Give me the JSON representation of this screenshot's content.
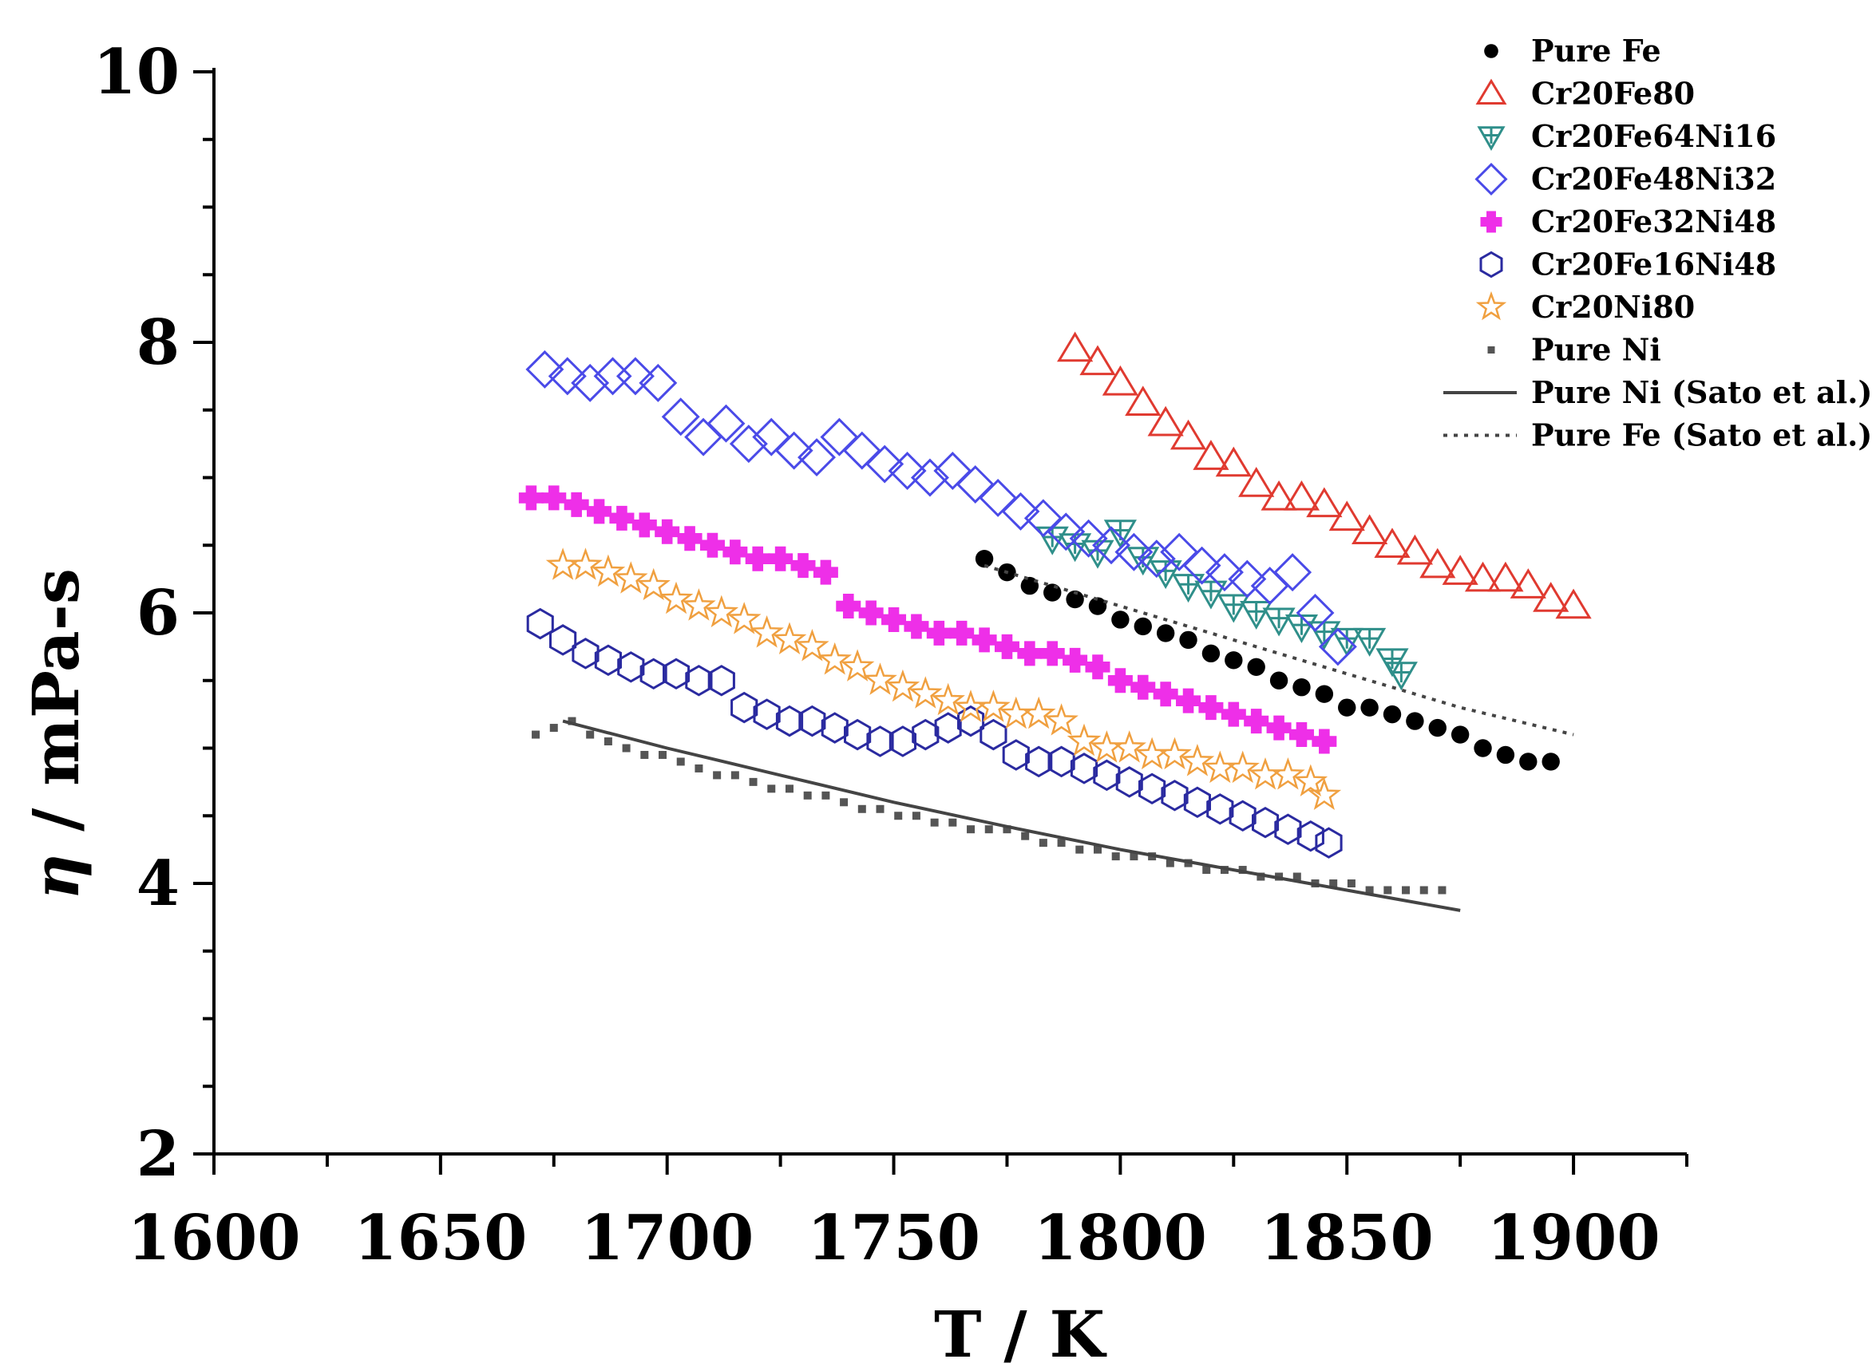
{
  "chart_data": {
    "type": "scatter",
    "title": "",
    "xlabel": "T / K",
    "ylabel_symbol": "η",
    "ylabel_unit": " / mPa-s",
    "xlim": [
      1600,
      1925
    ],
    "ylim": [
      2,
      10
    ],
    "x_major_ticks": [
      1600,
      1650,
      1700,
      1750,
      1800,
      1850,
      1900
    ],
    "x_tick_labels": [
      "1600",
      "1650",
      "1700",
      "1750",
      "1800",
      "1850",
      "1900"
    ],
    "x_minor_step": 25,
    "y_major_ticks": [
      2,
      4,
      6,
      8,
      10
    ],
    "y_tick_labels": [
      "2",
      "4",
      "6",
      "8",
      "10"
    ],
    "y_minor_step": 0.5,
    "grid": false,
    "legend_position": "top-right",
    "series": [
      {
        "name": "Pure Fe",
        "marker": "filled-circle",
        "color": "#000000",
        "points": [
          [
            1770,
            6.4
          ],
          [
            1775,
            6.3
          ],
          [
            1780,
            6.2
          ],
          [
            1785,
            6.15
          ],
          [
            1790,
            6.1
          ],
          [
            1795,
            6.05
          ],
          [
            1800,
            5.95
          ],
          [
            1805,
            5.9
          ],
          [
            1810,
            5.85
          ],
          [
            1815,
            5.8
          ],
          [
            1820,
            5.7
          ],
          [
            1825,
            5.65
          ],
          [
            1830,
            5.6
          ],
          [
            1835,
            5.5
          ],
          [
            1840,
            5.45
          ],
          [
            1845,
            5.4
          ],
          [
            1850,
            5.3
          ],
          [
            1855,
            5.3
          ],
          [
            1860,
            5.25
          ],
          [
            1865,
            5.2
          ],
          [
            1870,
            5.15
          ],
          [
            1875,
            5.1
          ],
          [
            1880,
            5.0
          ],
          [
            1885,
            4.95
          ],
          [
            1890,
            4.9
          ],
          [
            1895,
            4.9
          ]
        ]
      },
      {
        "name": "Cr20Fe80",
        "marker": "open-triangle",
        "color": "#e03a30",
        "points": [
          [
            1790,
            7.95
          ],
          [
            1795,
            7.85
          ],
          [
            1800,
            7.7
          ],
          [
            1805,
            7.55
          ],
          [
            1810,
            7.4
          ],
          [
            1815,
            7.3
          ],
          [
            1820,
            7.15
          ],
          [
            1825,
            7.1
          ],
          [
            1830,
            6.95
          ],
          [
            1835,
            6.85
          ],
          [
            1840,
            6.85
          ],
          [
            1845,
            6.8
          ],
          [
            1850,
            6.7
          ],
          [
            1855,
            6.6
          ],
          [
            1860,
            6.5
          ],
          [
            1865,
            6.45
          ],
          [
            1870,
            6.35
          ],
          [
            1875,
            6.3
          ],
          [
            1880,
            6.25
          ],
          [
            1885,
            6.25
          ],
          [
            1890,
            6.2
          ],
          [
            1895,
            6.1
          ],
          [
            1900,
            6.05
          ]
        ]
      },
      {
        "name": "Cr20Fe64Ni16",
        "marker": "open-down-triangle-cross",
        "color": "#2f8f8a",
        "points": [
          [
            1785,
            6.55
          ],
          [
            1790,
            6.5
          ],
          [
            1795,
            6.45
          ],
          [
            1800,
            6.6
          ],
          [
            1805,
            6.4
          ],
          [
            1810,
            6.3
          ],
          [
            1815,
            6.2
          ],
          [
            1820,
            6.15
          ],
          [
            1825,
            6.05
          ],
          [
            1830,
            6.0
          ],
          [
            1835,
            5.95
          ],
          [
            1840,
            5.9
          ],
          [
            1845,
            5.85
          ],
          [
            1850,
            5.8
          ],
          [
            1855,
            5.8
          ],
          [
            1860,
            5.65
          ],
          [
            1862,
            5.55
          ]
        ]
      },
      {
        "name": "Cr20Fe48Ni32",
        "marker": "open-diamond",
        "color": "#4a4ae8",
        "points": [
          [
            1673,
            7.8
          ],
          [
            1678,
            7.75
          ],
          [
            1683,
            7.7
          ],
          [
            1688,
            7.75
          ],
          [
            1693,
            7.75
          ],
          [
            1698,
            7.7
          ],
          [
            1703,
            7.45
          ],
          [
            1708,
            7.3
          ],
          [
            1713,
            7.4
          ],
          [
            1718,
            7.25
          ],
          [
            1723,
            7.3
          ],
          [
            1728,
            7.2
          ],
          [
            1733,
            7.15
          ],
          [
            1738,
            7.3
          ],
          [
            1743,
            7.2
          ],
          [
            1748,
            7.1
          ],
          [
            1753,
            7.05
          ],
          [
            1758,
            7.0
          ],
          [
            1763,
            7.05
          ],
          [
            1768,
            6.95
          ],
          [
            1773,
            6.85
          ],
          [
            1778,
            6.75
          ],
          [
            1783,
            6.7
          ],
          [
            1788,
            6.6
          ],
          [
            1793,
            6.55
          ],
          [
            1798,
            6.5
          ],
          [
            1803,
            6.45
          ],
          [
            1808,
            6.4
          ],
          [
            1813,
            6.45
          ],
          [
            1818,
            6.35
          ],
          [
            1823,
            6.3
          ],
          [
            1828,
            6.25
          ],
          [
            1833,
            6.2
          ],
          [
            1838,
            6.3
          ],
          [
            1843,
            6.0
          ],
          [
            1848,
            5.75
          ]
        ]
      },
      {
        "name": "Cr20Fe32Ni48",
        "marker": "filled-plus-left",
        "color": "#ee2fe8",
        "points": [
          [
            1670,
            6.85
          ],
          [
            1675,
            6.85
          ],
          [
            1680,
            6.8
          ],
          [
            1685,
            6.75
          ],
          [
            1690,
            6.7
          ],
          [
            1695,
            6.65
          ],
          [
            1700,
            6.6
          ],
          [
            1705,
            6.55
          ],
          [
            1710,
            6.5
          ],
          [
            1715,
            6.45
          ],
          [
            1720,
            6.4
          ],
          [
            1725,
            6.4
          ],
          [
            1730,
            6.35
          ],
          [
            1735,
            6.3
          ],
          [
            1740,
            6.05
          ],
          [
            1745,
            6.0
          ],
          [
            1750,
            5.95
          ],
          [
            1755,
            5.9
          ],
          [
            1760,
            5.85
          ],
          [
            1765,
            5.85
          ],
          [
            1770,
            5.8
          ],
          [
            1775,
            5.75
          ],
          [
            1780,
            5.7
          ],
          [
            1785,
            5.7
          ],
          [
            1790,
            5.65
          ],
          [
            1795,
            5.6
          ],
          [
            1800,
            5.5
          ],
          [
            1805,
            5.45
          ],
          [
            1810,
            5.4
          ],
          [
            1815,
            5.35
          ],
          [
            1820,
            5.3
          ],
          [
            1825,
            5.25
          ],
          [
            1830,
            5.2
          ],
          [
            1835,
            5.15
          ],
          [
            1840,
            5.1
          ],
          [
            1845,
            5.05
          ]
        ]
      },
      {
        "name": "Cr20Fe16Ni48",
        "marker": "open-hexagon",
        "color": "#2a2aa0",
        "points": [
          [
            1672,
            5.92
          ],
          [
            1677,
            5.8
          ],
          [
            1682,
            5.7
          ],
          [
            1687,
            5.65
          ],
          [
            1692,
            5.6
          ],
          [
            1697,
            5.55
          ],
          [
            1702,
            5.55
          ],
          [
            1707,
            5.5
          ],
          [
            1712,
            5.5
          ],
          [
            1717,
            5.3
          ],
          [
            1722,
            5.25
          ],
          [
            1727,
            5.2
          ],
          [
            1732,
            5.2
          ],
          [
            1737,
            5.15
          ],
          [
            1742,
            5.1
          ],
          [
            1747,
            5.05
          ],
          [
            1752,
            5.05
          ],
          [
            1757,
            5.1
          ],
          [
            1762,
            5.15
          ],
          [
            1767,
            5.2
          ],
          [
            1772,
            5.1
          ],
          [
            1777,
            4.95
          ],
          [
            1782,
            4.9
          ],
          [
            1787,
            4.9
          ],
          [
            1792,
            4.85
          ],
          [
            1797,
            4.8
          ],
          [
            1802,
            4.75
          ],
          [
            1807,
            4.7
          ],
          [
            1812,
            4.65
          ],
          [
            1817,
            4.6
          ],
          [
            1822,
            4.55
          ],
          [
            1827,
            4.5
          ],
          [
            1832,
            4.45
          ],
          [
            1837,
            4.4
          ],
          [
            1842,
            4.35
          ],
          [
            1846,
            4.3
          ]
        ]
      },
      {
        "name": "Cr20Ni80",
        "marker": "open-star",
        "color": "#f0a040",
        "points": [
          [
            1677,
            6.35
          ],
          [
            1682,
            6.35
          ],
          [
            1687,
            6.3
          ],
          [
            1692,
            6.25
          ],
          [
            1697,
            6.2
          ],
          [
            1702,
            6.1
          ],
          [
            1707,
            6.05
          ],
          [
            1712,
            6.0
          ],
          [
            1717,
            5.95
          ],
          [
            1722,
            5.85
          ],
          [
            1727,
            5.8
          ],
          [
            1732,
            5.75
          ],
          [
            1737,
            5.65
          ],
          [
            1742,
            5.6
          ],
          [
            1747,
            5.5
          ],
          [
            1752,
            5.45
          ],
          [
            1757,
            5.4
          ],
          [
            1762,
            5.35
          ],
          [
            1767,
            5.3
          ],
          [
            1772,
            5.3
          ],
          [
            1777,
            5.25
          ],
          [
            1782,
            5.25
          ],
          [
            1787,
            5.2
          ],
          [
            1792,
            5.05
          ],
          [
            1797,
            5.0
          ],
          [
            1802,
            5.0
          ],
          [
            1807,
            4.95
          ],
          [
            1812,
            4.95
          ],
          [
            1817,
            4.9
          ],
          [
            1822,
            4.85
          ],
          [
            1827,
            4.85
          ],
          [
            1832,
            4.8
          ],
          [
            1837,
            4.8
          ],
          [
            1842,
            4.75
          ],
          [
            1845,
            4.65
          ]
        ]
      },
      {
        "name": "Pure Ni",
        "marker": "filled-square",
        "color": "#555555",
        "points": [
          [
            1671,
            5.1
          ],
          [
            1675,
            5.15
          ],
          [
            1679,
            5.2
          ],
          [
            1683,
            5.1
          ],
          [
            1687,
            5.05
          ],
          [
            1691,
            5.0
          ],
          [
            1695,
            4.95
          ],
          [
            1699,
            4.95
          ],
          [
            1703,
            4.9
          ],
          [
            1707,
            4.85
          ],
          [
            1711,
            4.8
          ],
          [
            1715,
            4.8
          ],
          [
            1719,
            4.75
          ],
          [
            1723,
            4.7
          ],
          [
            1727,
            4.7
          ],
          [
            1731,
            4.65
          ],
          [
            1735,
            4.65
          ],
          [
            1739,
            4.6
          ],
          [
            1743,
            4.55
          ],
          [
            1747,
            4.55
          ],
          [
            1751,
            4.5
          ],
          [
            1755,
            4.5
          ],
          [
            1759,
            4.45
          ],
          [
            1763,
            4.45
          ],
          [
            1767,
            4.4
          ],
          [
            1771,
            4.4
          ],
          [
            1775,
            4.4
          ],
          [
            1779,
            4.35
          ],
          [
            1783,
            4.3
          ],
          [
            1787,
            4.3
          ],
          [
            1791,
            4.25
          ],
          [
            1795,
            4.25
          ],
          [
            1799,
            4.2
          ],
          [
            1803,
            4.2
          ],
          [
            1807,
            4.2
          ],
          [
            1811,
            4.15
          ],
          [
            1815,
            4.15
          ],
          [
            1819,
            4.1
          ],
          [
            1823,
            4.1
          ],
          [
            1827,
            4.1
          ],
          [
            1831,
            4.05
          ],
          [
            1835,
            4.05
          ],
          [
            1839,
            4.05
          ],
          [
            1843,
            4.0
          ],
          [
            1847,
            4.0
          ],
          [
            1851,
            4.0
          ],
          [
            1855,
            3.95
          ],
          [
            1859,
            3.95
          ],
          [
            1863,
            3.95
          ],
          [
            1867,
            3.95
          ],
          [
            1871,
            3.95
          ]
        ]
      },
      {
        "name": "Pure Ni (Sato et al.)",
        "marker": "none",
        "line": "solid",
        "color": "#444444",
        "points": [
          [
            1677,
            5.2
          ],
          [
            1700,
            5.0
          ],
          [
            1725,
            4.8
          ],
          [
            1750,
            4.6
          ],
          [
            1775,
            4.42
          ],
          [
            1800,
            4.25
          ],
          [
            1825,
            4.1
          ],
          [
            1850,
            3.95
          ],
          [
            1875,
            3.8
          ]
        ]
      },
      {
        "name": "Pure Fe (Sato et al.)",
        "marker": "none",
        "line": "dotted",
        "color": "#444444",
        "points": [
          [
            1770,
            6.35
          ],
          [
            1800,
            6.05
          ],
          [
            1825,
            5.8
          ],
          [
            1850,
            5.55
          ],
          [
            1875,
            5.3
          ],
          [
            1900,
            5.1
          ]
        ]
      }
    ]
  }
}
